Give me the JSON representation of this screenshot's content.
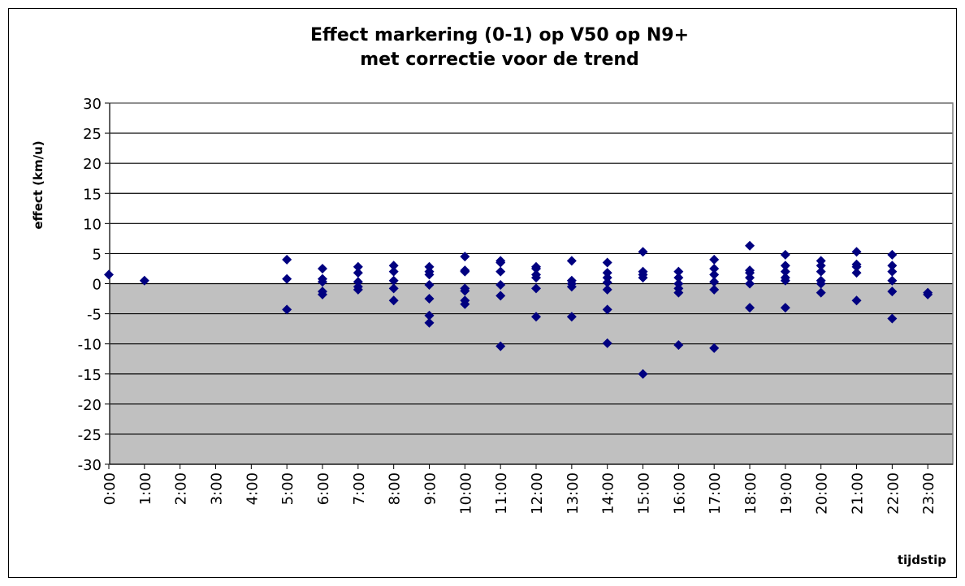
{
  "chart_data": {
    "type": "scatter",
    "title": [
      "Effect markering (0-1) op V50 op N9+",
      "met correctie voor de trend"
    ],
    "y_label": "effect (km/u)",
    "x_label": "tijdstip",
    "categories": [
      "0:00",
      "1:00",
      "2:00",
      "3:00",
      "4:00",
      "5:00",
      "6:00",
      "7:00",
      "8:00",
      "9:00",
      "10:00",
      "11:00",
      "12:00",
      "13:00",
      "14:00",
      "15:00",
      "16:00",
      "17:00",
      "18:00",
      "19:00",
      "20:00",
      "21:00",
      "22:00",
      "23:00"
    ],
    "values": [
      [
        1.5
      ],
      [
        0.5
      ],
      [],
      [],
      [],
      [
        4.0,
        0.8,
        -4.3
      ],
      [
        2.5,
        0.8,
        0.3,
        -1.3,
        -1.8
      ],
      [
        2.8,
        1.8,
        0.3,
        -0.5,
        -1.0
      ],
      [
        3.0,
        2.0,
        0.5,
        -0.8,
        -2.8
      ],
      [
        2.8,
        2.0,
        1.5,
        -0.2,
        -2.5,
        -5.3,
        -6.5
      ],
      [
        4.5,
        2.2,
        2.0,
        -0.8,
        -1.2,
        -2.8,
        -3.4
      ],
      [
        3.8,
        3.5,
        2.0,
        -0.2,
        -2.0,
        -10.4
      ],
      [
        2.8,
        2.5,
        1.5,
        1.0,
        -0.8,
        -5.5
      ],
      [
        3.8,
        0.5,
        0.0,
        -0.5,
        -5.5
      ],
      [
        3.5,
        1.8,
        1.0,
        0.2,
        -1.0,
        -4.3,
        -9.9
      ],
      [
        5.3,
        2.0,
        1.5,
        1.0,
        -15.0
      ],
      [
        2.0,
        1.0,
        0.0,
        -0.8,
        -1.5,
        -10.2
      ],
      [
        4.0,
        2.5,
        1.5,
        0.3,
        -1.0,
        -10.7
      ],
      [
        6.3,
        2.2,
        1.8,
        1.0,
        0.0,
        -4.0
      ],
      [
        4.8,
        3.0,
        2.0,
        1.0,
        0.5,
        -4.0
      ],
      [
        3.8,
        3.0,
        2.0,
        0.5,
        0.0,
        -1.5
      ],
      [
        5.3,
        3.2,
        2.8,
        1.8,
        -2.8
      ],
      [
        4.8,
        3.0,
        2.0,
        0.5,
        -1.3,
        -5.8
      ],
      [
        -1.5,
        -1.8
      ]
    ],
    "color": "#000080",
    "ylim": [
      -30,
      30
    ],
    "yticks": [
      -30,
      -25,
      -20,
      -15,
      -10,
      -5,
      0,
      5,
      10,
      15,
      20,
      25,
      30
    ],
    "grid": true
  }
}
